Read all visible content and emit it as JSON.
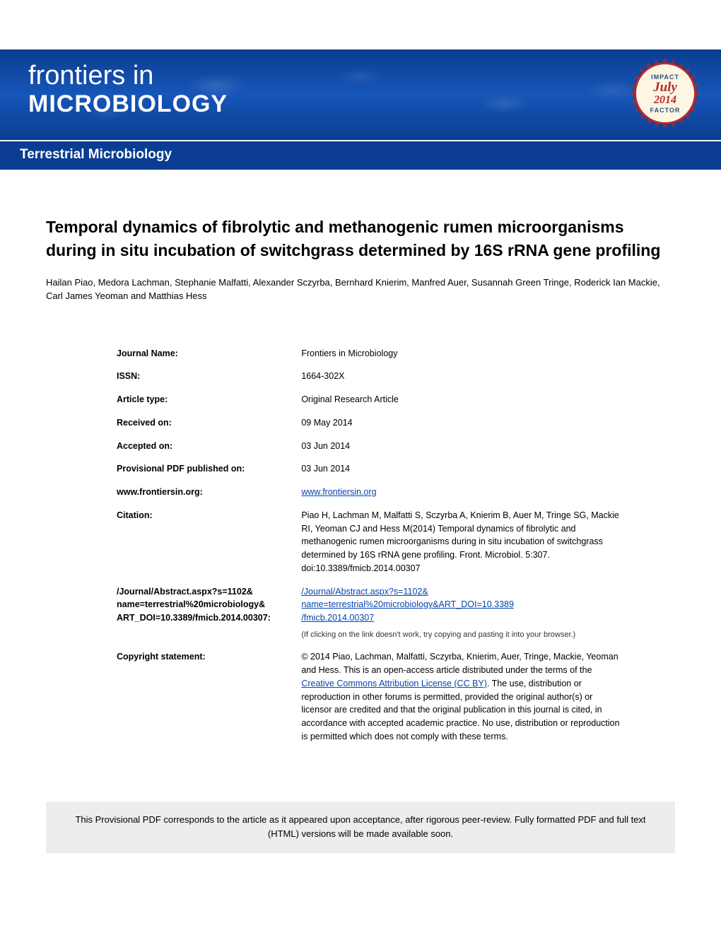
{
  "header": {
    "logo_line1": "frontiers in",
    "logo_line2": "MICROBIOLOGY",
    "badge_top": "IMPACT",
    "badge_month": "July",
    "badge_year": "2014",
    "badge_bottom": "FACTOR"
  },
  "section": {
    "name": "Terrestrial Microbiology"
  },
  "article": {
    "title": "Temporal dynamics of fibrolytic and methanogenic rumen microorganisms during in situ incubation of switchgrass determined by 16S rRNA gene profiling",
    "authors": "Hailan Piao, Medora Lachman, Stephanie Malfatti, Alexander Sczyrba, Bernhard Knierim, Manfred Auer, Susannah Green Tringe, Roderick Ian Mackie, Carl James Yeoman and Matthias Hess"
  },
  "meta": {
    "journal_label": "Journal Name:",
    "journal_value": "Frontiers in Microbiology",
    "issn_label": "ISSN:",
    "issn_value": "1664-302X",
    "type_label": "Article type:",
    "type_value": "Original Research Article",
    "received_label": "Received on:",
    "received_value": "09 May 2014",
    "accepted_label": "Accepted on:",
    "accepted_value": "03 Jun 2014",
    "provisional_label": "Provisional PDF published on:",
    "provisional_value": "03 Jun 2014",
    "site_label": "www.frontiersin.org:",
    "site_value": "www.frontiersin.org",
    "citation_label": "Citation:",
    "citation_value": "Piao H, Lachman M, Malfatti S, Sczyrba A, Knierim B, Auer M, Tringe SG, Mackie RI, Yeoman CJ and Hess M(2014) Temporal dynamics of fibrolytic and methanogenic rumen microorganisms during in situ incubation of switchgrass determined by 16S rRNA gene profiling. Front. Microbiol. 5:307. doi:10.3389/fmicb.2014.00307",
    "abstract_label": "/Journal/Abstract.aspx?s=1102& name=terrestrial%20microbiology& ART_DOI=10.3389/fmicb.2014.00307:",
    "abstract_link1": "/Journal/Abstract.aspx?s=1102&",
    "abstract_link2": "name=terrestrial%20microbiology&ART_DOI=10.3389",
    "abstract_link3": "/fmicb.2014.00307",
    "abstract_hint": "(If clicking on the link doesn't work, try copying and pasting it into your browser.)",
    "copyright_label": "Copyright statement:",
    "copyright_pre": "© 2014 Piao, Lachman, Malfatti, Sczyrba, Knierim, Auer, Tringe, Mackie, Yeoman and Hess. This is an open-access article distributed under the terms of the ",
    "copyright_link": "Creative Commons Attribution License (CC BY)",
    "copyright_post": ". The use, distribution or reproduction in other forums is permitted, provided the original author(s) or licensor are credited and that the original publication in this journal is cited, in accordance with accepted academic practice. No use, distribution or reproduction is permitted which does not comply with these terms."
  },
  "notice": {
    "text": "This Provisional PDF corresponds to the article as it appeared upon acceptance, after rigorous peer-review. Fully formatted PDF and full text (HTML) versions will be made available soon."
  },
  "colors": {
    "banner_blue": "#0a3d91",
    "badge_red": "#b8292f",
    "link_blue": "#0645ad",
    "notice_bg": "#ededed"
  }
}
